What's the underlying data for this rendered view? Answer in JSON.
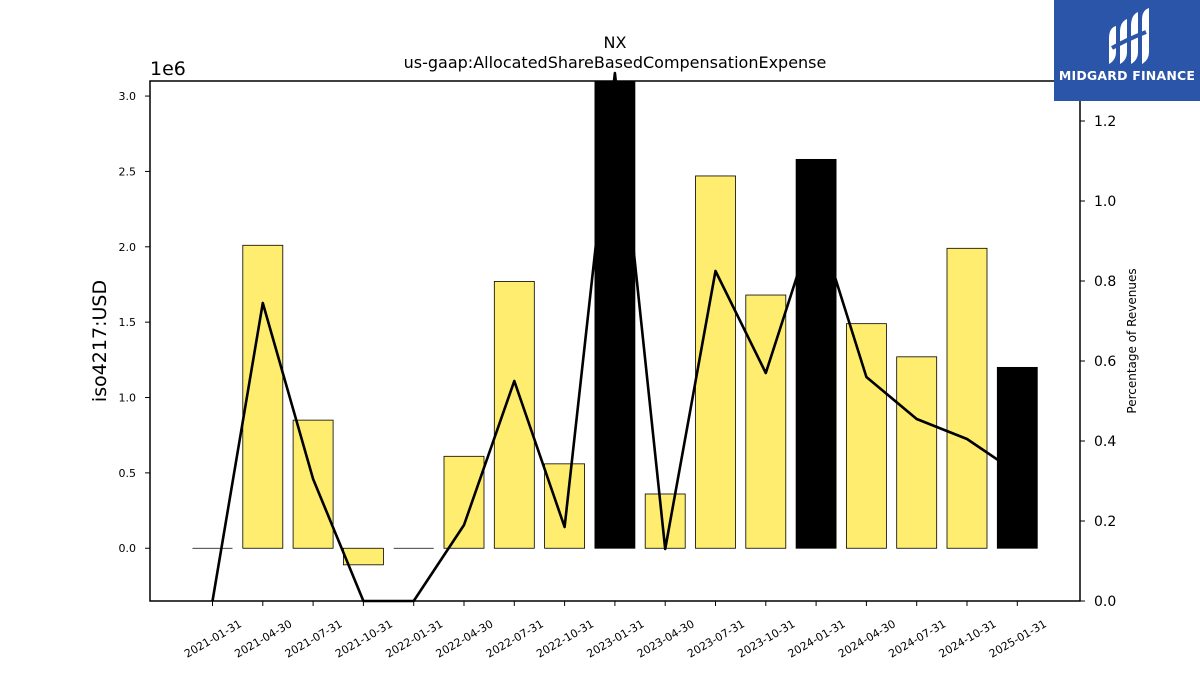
{
  "chart_data": {
    "type": "bar",
    "title": "NX",
    "subtitle": "us-gaap:AllocatedShareBasedCompensationExpense",
    "ylabel": "iso4217:USD",
    "y2label": "Percentage of Revenues",
    "yscale_label": "1e6",
    "ylim": [
      -0.35,
      3.1
    ],
    "y2lim": [
      0.0,
      1.3
    ],
    "yticks": [
      "0.0",
      "0.5",
      "1.0",
      "1.5",
      "2.0",
      "2.5",
      "3.0"
    ],
    "y2ticks": [
      "0.0",
      "0.2",
      "0.4",
      "0.6",
      "0.8",
      "1.0",
      "1.2"
    ],
    "categories": [
      "2021-01-31",
      "2021-04-30",
      "2021-07-31",
      "2021-10-31",
      "2022-01-31",
      "2022-04-30",
      "2022-07-31",
      "2022-10-31",
      "2023-01-31",
      "2023-04-30",
      "2023-07-31",
      "2023-10-31",
      "2024-01-31",
      "2024-04-30",
      "2024-07-31",
      "2024-10-31",
      "2025-01-31"
    ],
    "values": [
      0.0,
      2.01,
      0.85,
      -0.11,
      0.0,
      0.61,
      1.77,
      0.56,
      3.1,
      0.36,
      2.47,
      1.68,
      2.58,
      1.49,
      1.27,
      1.99,
      1.2
    ],
    "bar_colors": [
      "#ffed6f",
      "#ffed6f",
      "#ffed6f",
      "#ffed6f",
      "#ffed6f",
      "#ffed6f",
      "#ffed6f",
      "#ffed6f",
      "#000000",
      "#ffed6f",
      "#ffed6f",
      "#ffed6f",
      "#000000",
      "#ffed6f",
      "#ffed6f",
      "#ffed6f",
      "#000000"
    ],
    "line_values": [
      0.0,
      0.745,
      0.305,
      0.0,
      0.0,
      0.19,
      0.55,
      0.185,
      1.32,
      0.13,
      0.825,
      0.57,
      0.96,
      0.56,
      0.455,
      0.405,
      0.32
    ],
    "colors": {
      "highlight_bar": "#ffed6f",
      "dark_bar": "#000000",
      "line": "#000000"
    }
  },
  "logo": {
    "text": "MIDGARD FINANCE",
    "icon": "midgard-logo-icon",
    "background": "#2b55a8"
  }
}
